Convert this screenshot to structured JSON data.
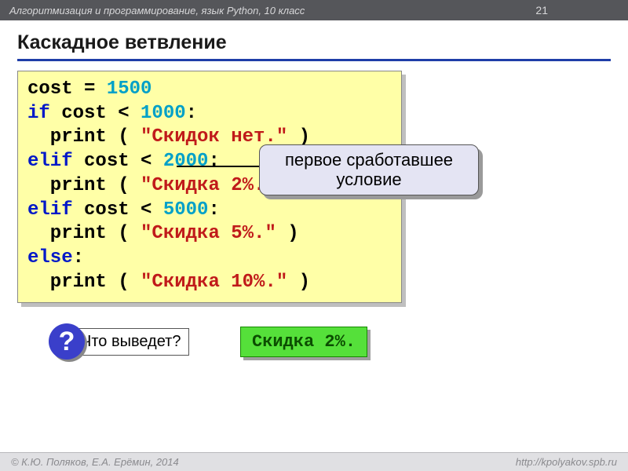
{
  "header": {
    "subject": "Алгоритмизация и программирование, язык Python, 10 класс",
    "page_number": "21"
  },
  "title": "Каскадное ветвление",
  "code": {
    "l1_a": "cost = ",
    "l1_num": "1500",
    "l2_kw": "if",
    "l2_mid": " cost < ",
    "l2_num": "1000",
    "l2_end": ":",
    "l3_a": "  print ( ",
    "l3_str": "\"Скидок нет.\"",
    "l3_end": " )",
    "l4_kw": "elif",
    "l4_mid": " cost < ",
    "l4_num": "2000",
    "l4_end": ":",
    "l5_a": "  print ( ",
    "l5_str": "\"Скидка 2%.\"",
    "l5_end": " )",
    "l6_kw": "elif",
    "l6_mid": " cost < ",
    "l6_num": "5000",
    "l6_end": ":",
    "l7_a": "  print ( ",
    "l7_str": "\"Скидка 5%.\"",
    "l7_end": " )",
    "l8_kw": "else",
    "l8_end": ":",
    "l9_a": "  print ( ",
    "l9_str": "\"Скидка 10%.\"",
    "l9_end": " )"
  },
  "callout": "первое сработавшее условие",
  "question_mark": "?",
  "question_text": "Что выведет?",
  "answer": "Скидка 2%.",
  "footer": {
    "left": "© К.Ю. Поляков, Е.А. Ерёмин, 2014",
    "right": "http://kpolyakov.spb.ru"
  },
  "colors": {
    "header_bg": "#55565a",
    "title_underline": "#1f3ea8",
    "code_bg": "#ffffa7",
    "keyword": "#0018c8",
    "number": "#00a0c8",
    "string": "#c01a1a",
    "callout_bg": "#e4e4f3",
    "qmark_bg": "#3a3fca",
    "answer_bg": "#55e03a",
    "answer_text": "#0b4d00",
    "footer_bg": "#e0e0e3"
  }
}
